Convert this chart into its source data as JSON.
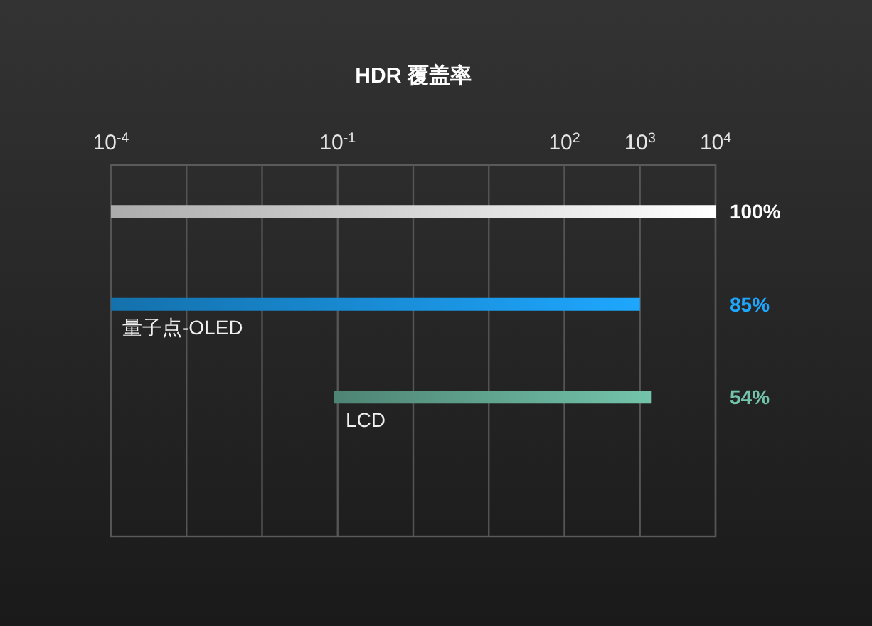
{
  "chart_data": {
    "type": "bar",
    "orientation": "horizontal",
    "title": "HDR 覆盖率",
    "categories": [
      null,
      "量子点-OLED",
      "LCD",
      null
    ],
    "base": [
      0.0001,
      0.0001,
      0.09,
      null
    ],
    "values": [
      9999.9999,
      999.9999,
      1399.91,
      null
    ],
    "colors": [
      "#ffffff",
      "#1ea7ff",
      "#73c4aa",
      null
    ],
    "annotations": [
      "100%",
      "85%",
      "54%"
    ],
    "log": "x",
    "xlim": [
      0.0001,
      10000
    ],
    "xticks": [
      {
        "value": 0.0001,
        "label": "10$^{-4}$"
      },
      {
        "value": 0.001,
        "label": null
      },
      {
        "value": 0.01,
        "label": null
      },
      {
        "value": 0.1,
        "label": "10$^{-1}$"
      },
      {
        "value": 1,
        "label": null
      },
      {
        "value": 10,
        "label": null
      },
      {
        "value": 100,
        "label": "10$^{2}$"
      },
      {
        "value": 1000,
        "label": "10$^{3}$"
      },
      {
        "value": 10000,
        "label": "10$^{4}$"
      }
    ],
    "grid": "x"
  }
}
